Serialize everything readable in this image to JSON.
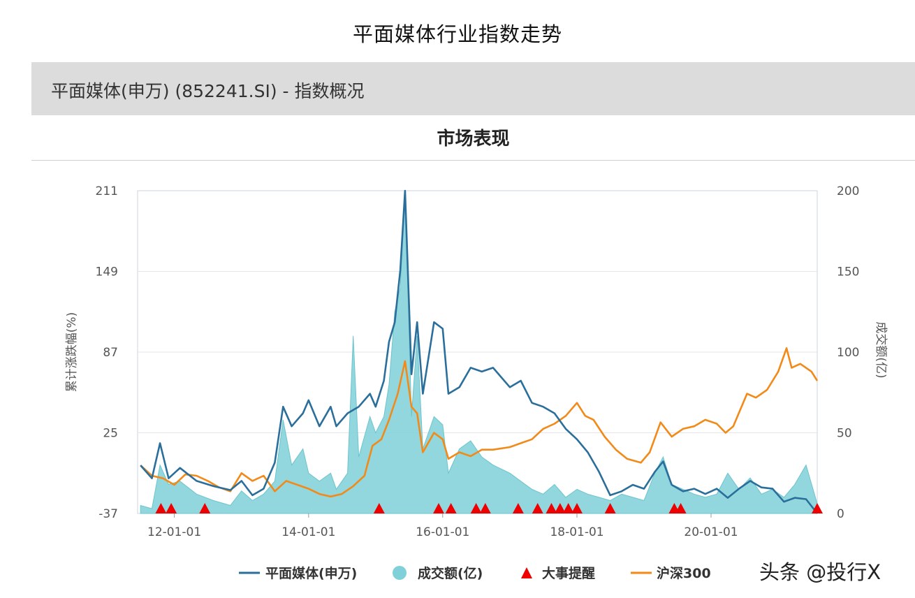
{
  "page_title": "平面媒体行业指数走势",
  "header": {
    "title": "平面媒体(申万) (852241.SI) - 指数概况"
  },
  "section": {
    "title": "市场表现"
  },
  "watermark": "头条 @投行X",
  "colors": {
    "index": "#2a6f9b",
    "volume": "#7fd0d8",
    "event": "#ee0000",
    "hs300": "#f28a1a",
    "grid": "#e3e6ea"
  },
  "chart_data": {
    "type": "line",
    "title": "市场表现",
    "ylabel": "累计涨跌幅(%)",
    "y2label": "成交额(亿)",
    "ylim": [
      -37,
      211
    ],
    "y2lim": [
      0,
      200
    ],
    "yticks": [
      "211",
      "149",
      "87",
      "25",
      "-37"
    ],
    "y2ticks": [
      "200",
      "150",
      "100",
      "50",
      "0"
    ],
    "xticks": [
      "12-01-01",
      "14-01-01",
      "16-01-01",
      "18-01-01",
      "20-01-01"
    ],
    "xtick_dates": [
      "2012-01-01",
      "2014-01-01",
      "2016-01-01",
      "2018-01-01",
      "2020-01-01"
    ],
    "legend": [
      "平面媒体(申万)",
      "成交额(亿)",
      "大事提醒",
      "沪深300"
    ],
    "legend_position": "bottom",
    "series": [
      {
        "name": "平面媒体(申万)",
        "axis": "left",
        "points": [
          [
            "2011-07-01",
            0
          ],
          [
            "2011-09-01",
            -10
          ],
          [
            "2011-10-15",
            17
          ],
          [
            "2011-12-01",
            -10
          ],
          [
            "2012-02-01",
            -2
          ],
          [
            "2012-05-01",
            -12
          ],
          [
            "2012-08-01",
            -16
          ],
          [
            "2012-11-01",
            -19
          ],
          [
            "2013-01-01",
            -12
          ],
          [
            "2013-03-01",
            -23
          ],
          [
            "2013-05-01",
            -18
          ],
          [
            "2013-07-01",
            2
          ],
          [
            "2013-08-15",
            45
          ],
          [
            "2013-10-01",
            30
          ],
          [
            "2013-12-01",
            40
          ],
          [
            "2014-01-01",
            50
          ],
          [
            "2014-03-01",
            30
          ],
          [
            "2014-05-01",
            45
          ],
          [
            "2014-06-01",
            30
          ],
          [
            "2014-08-01",
            40
          ],
          [
            "2014-10-01",
            45
          ],
          [
            "2014-12-01",
            55
          ],
          [
            "2015-01-01",
            45
          ],
          [
            "2015-02-15",
            65
          ],
          [
            "2015-03-15",
            95
          ],
          [
            "2015-04-15",
            110
          ],
          [
            "2015-05-15",
            150
          ],
          [
            "2015-06-10",
            211
          ],
          [
            "2015-07-15",
            70
          ],
          [
            "2015-08-15",
            110
          ],
          [
            "2015-09-15",
            55
          ],
          [
            "2015-11-15",
            110
          ],
          [
            "2016-01-01",
            105
          ],
          [
            "2016-02-01",
            55
          ],
          [
            "2016-04-01",
            60
          ],
          [
            "2016-06-01",
            75
          ],
          [
            "2016-08-01",
            72
          ],
          [
            "2016-10-01",
            75
          ],
          [
            "2017-01-01",
            60
          ],
          [
            "2017-03-01",
            65
          ],
          [
            "2017-05-01",
            48
          ],
          [
            "2017-07-01",
            45
          ],
          [
            "2017-09-01",
            40
          ],
          [
            "2017-11-01",
            28
          ],
          [
            "2018-01-01",
            20
          ],
          [
            "2018-03-01",
            10
          ],
          [
            "2018-05-01",
            -5
          ],
          [
            "2018-07-01",
            -23
          ],
          [
            "2018-09-01",
            -20
          ],
          [
            "2018-11-01",
            -15
          ],
          [
            "2019-01-01",
            -18
          ],
          [
            "2019-03-01",
            -5
          ],
          [
            "2019-04-15",
            3
          ],
          [
            "2019-06-01",
            -15
          ],
          [
            "2019-08-01",
            -20
          ],
          [
            "2019-10-01",
            -18
          ],
          [
            "2019-12-01",
            -22
          ],
          [
            "2020-02-01",
            -18
          ],
          [
            "2020-04-01",
            -25
          ],
          [
            "2020-06-01",
            -18
          ],
          [
            "2020-08-01",
            -12
          ],
          [
            "2020-10-01",
            -17
          ],
          [
            "2020-12-01",
            -18
          ],
          [
            "2021-02-01",
            -28
          ],
          [
            "2021-04-01",
            -25
          ],
          [
            "2021-06-01",
            -26
          ],
          [
            "2021-08-01",
            -37
          ]
        ]
      },
      {
        "name": "沪深300",
        "axis": "left",
        "points": [
          [
            "2011-07-01",
            0
          ],
          [
            "2011-09-01",
            -8
          ],
          [
            "2011-11-01",
            -10
          ],
          [
            "2012-01-01",
            -15
          ],
          [
            "2012-03-01",
            -7
          ],
          [
            "2012-05-01",
            -8
          ],
          [
            "2012-07-01",
            -12
          ],
          [
            "2012-09-01",
            -17
          ],
          [
            "2012-11-01",
            -20
          ],
          [
            "2013-01-01",
            -6
          ],
          [
            "2013-03-01",
            -12
          ],
          [
            "2013-05-01",
            -8
          ],
          [
            "2013-07-01",
            -20
          ],
          [
            "2013-09-01",
            -12
          ],
          [
            "2013-11-01",
            -15
          ],
          [
            "2014-01-01",
            -18
          ],
          [
            "2014-03-01",
            -22
          ],
          [
            "2014-05-01",
            -24
          ],
          [
            "2014-07-01",
            -22
          ],
          [
            "2014-09-01",
            -16
          ],
          [
            "2014-11-01",
            -8
          ],
          [
            "2014-12-15",
            15
          ],
          [
            "2015-02-01",
            20
          ],
          [
            "2015-03-15",
            35
          ],
          [
            "2015-05-01",
            55
          ],
          [
            "2015-06-10",
            80
          ],
          [
            "2015-07-15",
            45
          ],
          [
            "2015-08-15",
            40
          ],
          [
            "2015-09-15",
            10
          ],
          [
            "2015-11-15",
            25
          ],
          [
            "2016-01-01",
            20
          ],
          [
            "2016-02-01",
            5
          ],
          [
            "2016-04-01",
            10
          ],
          [
            "2016-06-01",
            7
          ],
          [
            "2016-08-01",
            12
          ],
          [
            "2016-10-01",
            12
          ],
          [
            "2017-01-01",
            14
          ],
          [
            "2017-03-01",
            17
          ],
          [
            "2017-05-01",
            20
          ],
          [
            "2017-07-01",
            28
          ],
          [
            "2017-09-01",
            32
          ],
          [
            "2017-11-01",
            38
          ],
          [
            "2018-01-01",
            48
          ],
          [
            "2018-02-15",
            38
          ],
          [
            "2018-04-01",
            35
          ],
          [
            "2018-06-01",
            22
          ],
          [
            "2018-08-01",
            12
          ],
          [
            "2018-10-01",
            5
          ],
          [
            "2018-12-15",
            2
          ],
          [
            "2019-02-01",
            10
          ],
          [
            "2019-04-01",
            33
          ],
          [
            "2019-06-01",
            22
          ],
          [
            "2019-08-01",
            28
          ],
          [
            "2019-10-01",
            30
          ],
          [
            "2019-12-01",
            35
          ],
          [
            "2020-02-01",
            32
          ],
          [
            "2020-03-20",
            25
          ],
          [
            "2020-05-01",
            30
          ],
          [
            "2020-07-15",
            55
          ],
          [
            "2020-09-01",
            52
          ],
          [
            "2020-11-01",
            58
          ],
          [
            "2021-01-01",
            72
          ],
          [
            "2021-02-15",
            90
          ],
          [
            "2021-03-15",
            75
          ],
          [
            "2021-05-01",
            78
          ],
          [
            "2021-07-01",
            72
          ],
          [
            "2021-08-01",
            65
          ]
        ]
      },
      {
        "name": "成交额(亿)",
        "axis": "right",
        "type": "area",
        "points": [
          [
            "2011-07-01",
            5
          ],
          [
            "2011-09-01",
            3
          ],
          [
            "2011-10-15",
            30
          ],
          [
            "2011-12-01",
            18
          ],
          [
            "2012-02-01",
            20
          ],
          [
            "2012-05-01",
            12
          ],
          [
            "2012-08-01",
            8
          ],
          [
            "2012-11-01",
            5
          ],
          [
            "2013-01-01",
            14
          ],
          [
            "2013-03-01",
            8
          ],
          [
            "2013-05-01",
            12
          ],
          [
            "2013-07-01",
            20
          ],
          [
            "2013-08-15",
            58
          ],
          [
            "2013-10-01",
            30
          ],
          [
            "2013-12-01",
            40
          ],
          [
            "2014-01-01",
            25
          ],
          [
            "2014-03-01",
            20
          ],
          [
            "2014-05-01",
            25
          ],
          [
            "2014-06-01",
            15
          ],
          [
            "2014-08-01",
            25
          ],
          [
            "2014-09-01",
            110
          ],
          [
            "2014-10-01",
            35
          ],
          [
            "2014-12-01",
            60
          ],
          [
            "2015-01-01",
            50
          ],
          [
            "2015-02-15",
            60
          ],
          [
            "2015-03-15",
            80
          ],
          [
            "2015-04-15",
            125
          ],
          [
            "2015-05-15",
            140
          ],
          [
            "2015-06-10",
            200
          ],
          [
            "2015-07-15",
            60
          ],
          [
            "2015-08-15",
            110
          ],
          [
            "2015-09-15",
            40
          ],
          [
            "2015-11-15",
            60
          ],
          [
            "2016-01-01",
            55
          ],
          [
            "2016-02-01",
            25
          ],
          [
            "2016-04-01",
            40
          ],
          [
            "2016-06-01",
            45
          ],
          [
            "2016-08-01",
            35
          ],
          [
            "2016-10-01",
            30
          ],
          [
            "2017-01-01",
            25
          ],
          [
            "2017-03-01",
            20
          ],
          [
            "2017-05-01",
            15
          ],
          [
            "2017-07-01",
            12
          ],
          [
            "2017-09-01",
            18
          ],
          [
            "2017-11-01",
            10
          ],
          [
            "2018-01-01",
            15
          ],
          [
            "2018-03-01",
            12
          ],
          [
            "2018-05-01",
            10
          ],
          [
            "2018-07-01",
            8
          ],
          [
            "2018-09-01",
            12
          ],
          [
            "2018-11-01",
            10
          ],
          [
            "2019-01-01",
            8
          ],
          [
            "2019-03-01",
            25
          ],
          [
            "2019-04-15",
            35
          ],
          [
            "2019-06-01",
            18
          ],
          [
            "2019-08-01",
            15
          ],
          [
            "2019-10-01",
            12
          ],
          [
            "2019-12-01",
            10
          ],
          [
            "2020-02-01",
            12
          ],
          [
            "2020-04-01",
            25
          ],
          [
            "2020-06-01",
            15
          ],
          [
            "2020-08-01",
            22
          ],
          [
            "2020-10-01",
            12
          ],
          [
            "2020-12-01",
            15
          ],
          [
            "2021-02-01",
            10
          ],
          [
            "2021-04-01",
            18
          ],
          [
            "2021-06-01",
            30
          ],
          [
            "2021-08-01",
            6
          ]
        ]
      }
    ],
    "events": [
      "2011-10-20",
      "2011-12-15",
      "2012-06-15",
      "2015-01-20",
      "2015-12-10",
      "2016-02-15",
      "2016-07-01",
      "2016-08-20",
      "2017-02-15",
      "2017-06-01",
      "2017-08-15",
      "2017-10-01",
      "2017-11-15",
      "2018-01-01",
      "2018-07-01",
      "2019-06-15",
      "2019-07-20",
      "2021-08-01"
    ]
  }
}
